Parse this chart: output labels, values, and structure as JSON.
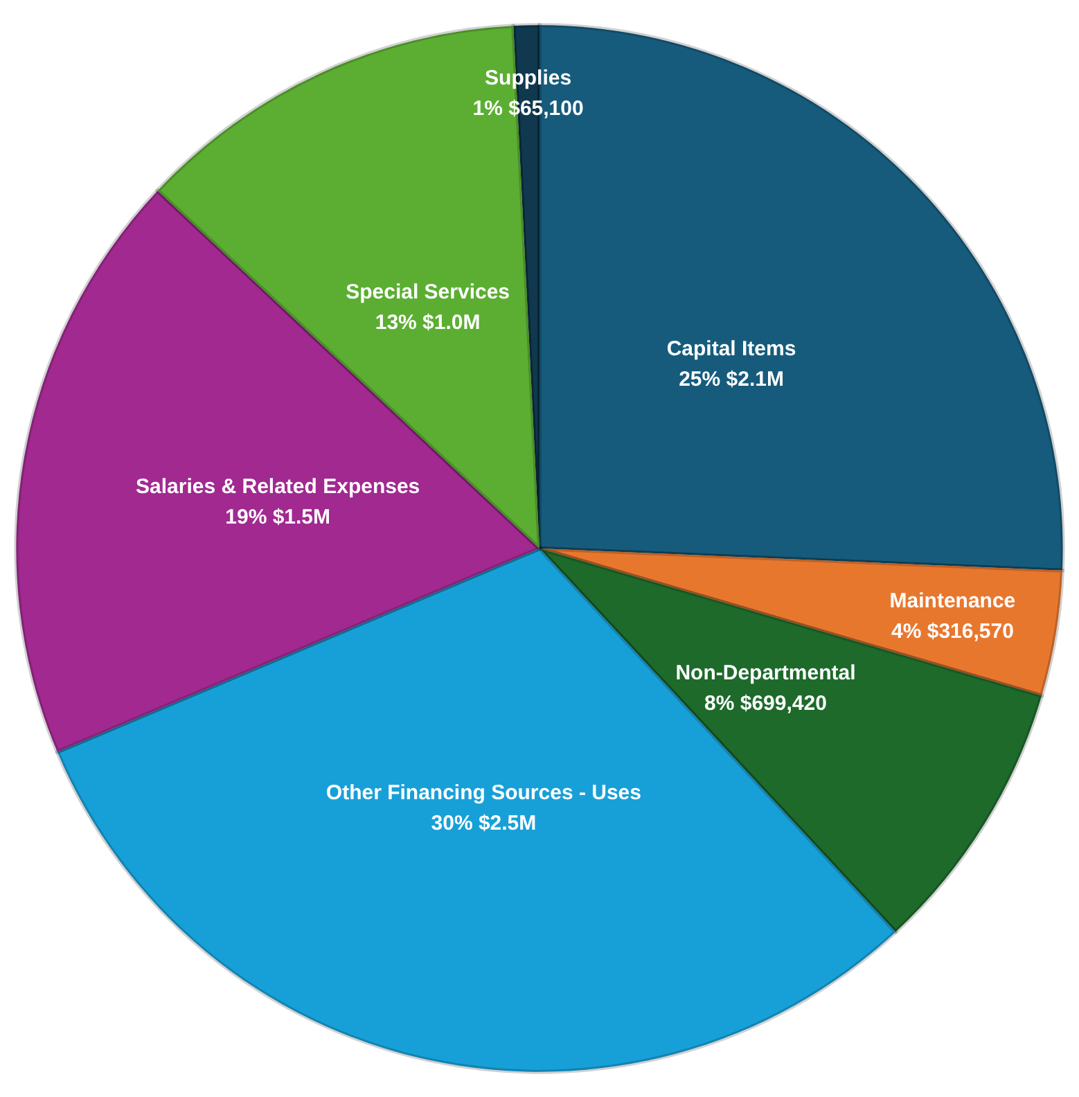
{
  "chart_data": {
    "type": "pie",
    "categories": [
      "Supplies",
      "Capital Items",
      "Maintenance",
      "Non-Departmental",
      "Other Financing Sources - Uses",
      "Salaries & Related Expenses",
      "Special Services"
    ],
    "values": [
      65100,
      2100000,
      316570,
      699420,
      2500000,
      1500000,
      1000000
    ],
    "value_labels": [
      "1% $65,100",
      "25% $2.1M",
      "4% $316,570",
      "8% $699,420",
      "30% $2.5M",
      "19% $1.5M",
      "13% $1.0M"
    ],
    "colors": [
      "#10394f",
      "#165b7c",
      "#e8772e",
      "#1d6a2b",
      "#17a0d8",
      "#a12990",
      "#5bae31"
    ],
    "legend": false
  }
}
